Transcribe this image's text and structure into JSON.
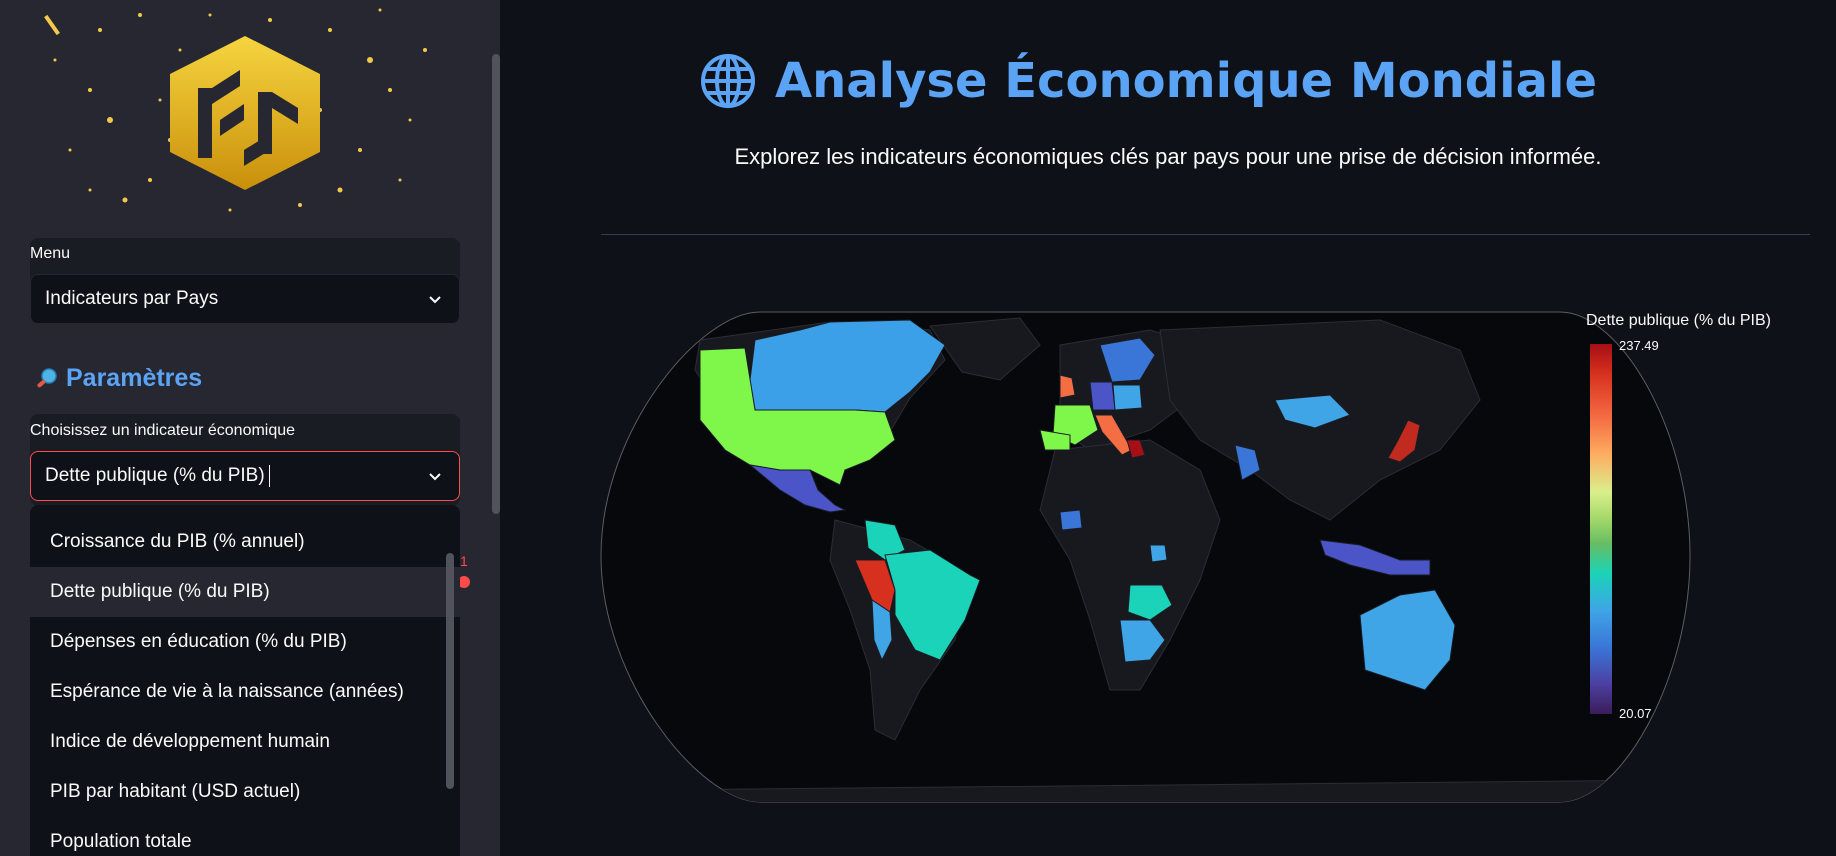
{
  "sidebar": {
    "menu_label": "Menu",
    "menu_value": "Indicateurs par Pays",
    "section_title": "Paramètres",
    "indicator_label": "Choisissez un indicateur économique",
    "indicator_value": "Dette publique (% du PIB)",
    "dropdown_options": [
      "Croissance du PIB (% annuel)",
      "Dette publique (% du PIB)",
      "Dépenses en éducation (% du PIB)",
      "Espérance de vie à la naissance (années)",
      "Indice de développement humain",
      "PIB par habitant (USD actuel)",
      "Population totale"
    ],
    "selected_option_index": 1,
    "slider_value": "1"
  },
  "main": {
    "title": "Analyse Économique Mondiale",
    "subtitle": "Explorez les indicateurs économiques clés par pays pour une prise de décision informée."
  },
  "chart_data": {
    "type": "choropleth",
    "projection": "natural earth",
    "colorbar_title": "Dette publique (% du PIB)",
    "colorbar_range": [
      20.07,
      237.49
    ],
    "colorbar_max_label": "237.49",
    "colorbar_min_label": "20.07",
    "colorscale": "spectral (purple low → red high)",
    "highlighted_regions": [
      "USA",
      "Canada",
      "Mexico",
      "Brazil",
      "Peru",
      "Europe",
      "Japan",
      "China",
      "Australia",
      "Indonesia",
      "South Africa"
    ]
  },
  "colors": {
    "accent": "#5ba4f5",
    "focus": "#ff4b4b",
    "sidebar_bg": "#262730",
    "main_bg": "#0e1117"
  }
}
